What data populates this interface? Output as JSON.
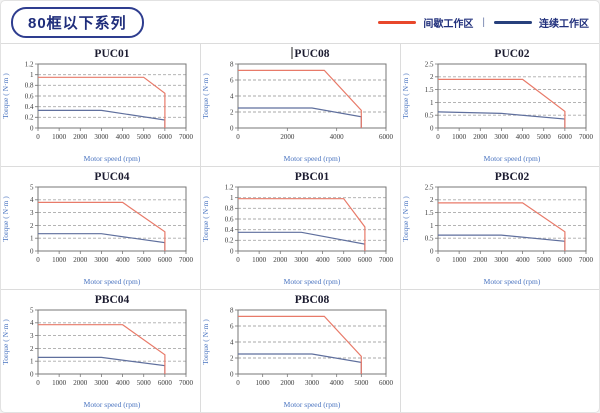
{
  "header": {
    "badge": "80框以下系列",
    "legend": [
      {
        "label": "间歇工作区",
        "color": "#e8472b"
      },
      {
        "label": "连续工作区",
        "color": "#27407c"
      }
    ],
    "legend_separator": "|"
  },
  "colors": {
    "chart_red": "#e87a69",
    "chart_blue": "#5f6f9d",
    "gridline": "#aaaaaa",
    "plot_border": "#777777",
    "tick_text": "#3a3a3a",
    "axis_label_blue": "#4a74c0"
  },
  "chart_data": [
    {
      "type": "line",
      "title": "PUC01",
      "xlabel": "Motor speed (rpm)",
      "ylabel": "Torque ( N·m )",
      "xlim": [
        0,
        7000
      ],
      "ylim": [
        0,
        1.2
      ],
      "xticks": [
        0,
        1000,
        2000,
        3000,
        4000,
        5000,
        6000,
        7000
      ],
      "yticks": [
        0,
        0.2,
        0.4,
        0.6,
        0.8,
        1,
        1.2
      ],
      "series": [
        {
          "name": "间歇工作区",
          "color": "#e87a69",
          "points": [
            [
              0,
              0.95
            ],
            [
              5000,
              0.95
            ],
            [
              6000,
              0.65
            ],
            [
              6000,
              0
            ]
          ]
        },
        {
          "name": "连续工作区",
          "color": "#5f6f9d",
          "points": [
            [
              0,
              0.33
            ],
            [
              3000,
              0.33
            ],
            [
              6000,
              0.15
            ],
            [
              6000,
              0
            ]
          ]
        }
      ]
    },
    {
      "type": "line",
      "title": "PUC08",
      "cursor_before_title": true,
      "xlabel": "Motor speed (rpm)",
      "ylabel": "Torque ( N·m )",
      "xlim": [
        0,
        6000
      ],
      "ylim": [
        0,
        8
      ],
      "xticks": [
        0,
        2000,
        4000,
        6000
      ],
      "yticks": [
        0,
        2,
        4,
        6,
        8
      ],
      "series": [
        {
          "name": "间歇工作区",
          "color": "#e87a69",
          "points": [
            [
              0,
              7.2
            ],
            [
              3500,
              7.2
            ],
            [
              5000,
              2.2
            ],
            [
              5000,
              0
            ]
          ]
        },
        {
          "name": "连续工作区",
          "color": "#5f6f9d",
          "points": [
            [
              0,
              2.5
            ],
            [
              3000,
              2.5
            ],
            [
              5000,
              1.4
            ],
            [
              5000,
              0
            ]
          ]
        }
      ]
    },
    {
      "type": "line",
      "title": "PUC02",
      "xlabel": "Motor speed (rpm)",
      "ylabel": "Torque ( N·m )",
      "xlim": [
        0,
        7000
      ],
      "ylim": [
        0,
        2.5
      ],
      "xticks": [
        0,
        1000,
        2000,
        3000,
        4000,
        5000,
        6000,
        7000
      ],
      "yticks": [
        0,
        0.5,
        1,
        1.5,
        2,
        2.5
      ],
      "series": [
        {
          "name": "间歇工作区",
          "color": "#e87a69",
          "points": [
            [
              0,
              1.9
            ],
            [
              4000,
              1.9
            ],
            [
              6000,
              0.65
            ],
            [
              6000,
              0
            ]
          ]
        },
        {
          "name": "连续工作区",
          "color": "#5f6f9d",
          "points": [
            [
              0,
              0.63
            ],
            [
              3000,
              0.57
            ],
            [
              6000,
              0.35
            ],
            [
              6000,
              0
            ]
          ]
        }
      ]
    },
    {
      "type": "line",
      "title": "PUC04",
      "xlabel": "Motor speed (rpm)",
      "ylabel": "Torque ( N·m )",
      "xlim": [
        0,
        7000
      ],
      "ylim": [
        0,
        5
      ],
      "xticks": [
        0,
        1000,
        2000,
        3000,
        4000,
        5000,
        6000,
        7000
      ],
      "yticks": [
        0,
        1,
        2,
        3,
        4,
        5
      ],
      "series": [
        {
          "name": "间歇工作区",
          "color": "#e87a69",
          "points": [
            [
              0,
              3.8
            ],
            [
              4000,
              3.8
            ],
            [
              6000,
              1.5
            ],
            [
              6000,
              0
            ]
          ]
        },
        {
          "name": "连续工作区",
          "color": "#5f6f9d",
          "points": [
            [
              0,
              1.35
            ],
            [
              3000,
              1.35
            ],
            [
              6000,
              0.65
            ],
            [
              6000,
              0
            ]
          ]
        }
      ]
    },
    {
      "type": "line",
      "title": "PBC01",
      "xlabel": "Motor speed (rpm)",
      "ylabel": "Torque ( N·m )",
      "xlim": [
        0,
        7000
      ],
      "ylim": [
        0,
        1.2
      ],
      "xticks": [
        0,
        1000,
        2000,
        3000,
        4000,
        5000,
        6000,
        7000
      ],
      "yticks": [
        0,
        0.2,
        0.4,
        0.6,
        0.8,
        1,
        1.2
      ],
      "series": [
        {
          "name": "间歇工作区",
          "color": "#e87a69",
          "points": [
            [
              0,
              0.98
            ],
            [
              5000,
              0.98
            ],
            [
              6000,
              0.45
            ],
            [
              6000,
              0
            ]
          ]
        },
        {
          "name": "连续工作区",
          "color": "#5f6f9d",
          "points": [
            [
              0,
              0.35
            ],
            [
              3000,
              0.35
            ],
            [
              6000,
              0.13
            ],
            [
              6000,
              0
            ]
          ]
        }
      ]
    },
    {
      "type": "line",
      "title": "PBC02",
      "xlabel": "Motor speed (rpm)",
      "ylabel": "Torque ( N·m )",
      "xlim": [
        0,
        7000
      ],
      "ylim": [
        0,
        2.5
      ],
      "xticks": [
        0,
        1000,
        2000,
        3000,
        4000,
        5000,
        6000,
        7000
      ],
      "yticks": [
        0,
        0.5,
        1,
        1.5,
        2,
        2.5
      ],
      "series": [
        {
          "name": "间歇工作区",
          "color": "#e87a69",
          "points": [
            [
              0,
              1.88
            ],
            [
              4000,
              1.88
            ],
            [
              6000,
              0.75
            ],
            [
              6000,
              0
            ]
          ]
        },
        {
          "name": "连续工作区",
          "color": "#5f6f9d",
          "points": [
            [
              0,
              0.62
            ],
            [
              3000,
              0.62
            ],
            [
              6000,
              0.38
            ],
            [
              6000,
              0
            ]
          ]
        }
      ]
    },
    {
      "type": "line",
      "title": "PBC04",
      "xlabel": "Motor speed (rpm)",
      "ylabel": "Torque ( N·m )",
      "xlim": [
        0,
        7000
      ],
      "ylim": [
        0,
        5
      ],
      "xticks": [
        0,
        1000,
        2000,
        3000,
        4000,
        5000,
        6000,
        7000
      ],
      "yticks": [
        0,
        1,
        2,
        3,
        4,
        5
      ],
      "series": [
        {
          "name": "间歇工作区",
          "color": "#e87a69",
          "points": [
            [
              0,
              3.85
            ],
            [
              4000,
              3.85
            ],
            [
              6000,
              1.5
            ],
            [
              6000,
              0
            ]
          ]
        },
        {
          "name": "连续工作区",
          "color": "#5f6f9d",
          "points": [
            [
              0,
              1.3
            ],
            [
              3000,
              1.3
            ],
            [
              6000,
              0.65
            ],
            [
              6000,
              0
            ]
          ]
        }
      ]
    },
    {
      "type": "line",
      "title": "PBC08",
      "xlabel": "Motor speed (rpm)",
      "ylabel": "Torque ( N·m )",
      "xlim": [
        0,
        6000
      ],
      "ylim": [
        0,
        8
      ],
      "xticks": [
        0,
        1000,
        2000,
        3000,
        4000,
        5000,
        6000
      ],
      "yticks": [
        0,
        2,
        4,
        6,
        8
      ],
      "series": [
        {
          "name": "间歇工作区",
          "color": "#e87a69",
          "points": [
            [
              0,
              7.2
            ],
            [
              3500,
              7.2
            ],
            [
              5000,
              2.2
            ],
            [
              5000,
              0
            ]
          ]
        },
        {
          "name": "连续工作区",
          "color": "#5f6f9d",
          "points": [
            [
              0,
              2.5
            ],
            [
              3000,
              2.5
            ],
            [
              5000,
              1.45
            ],
            [
              5000,
              0
            ]
          ]
        }
      ]
    }
  ]
}
